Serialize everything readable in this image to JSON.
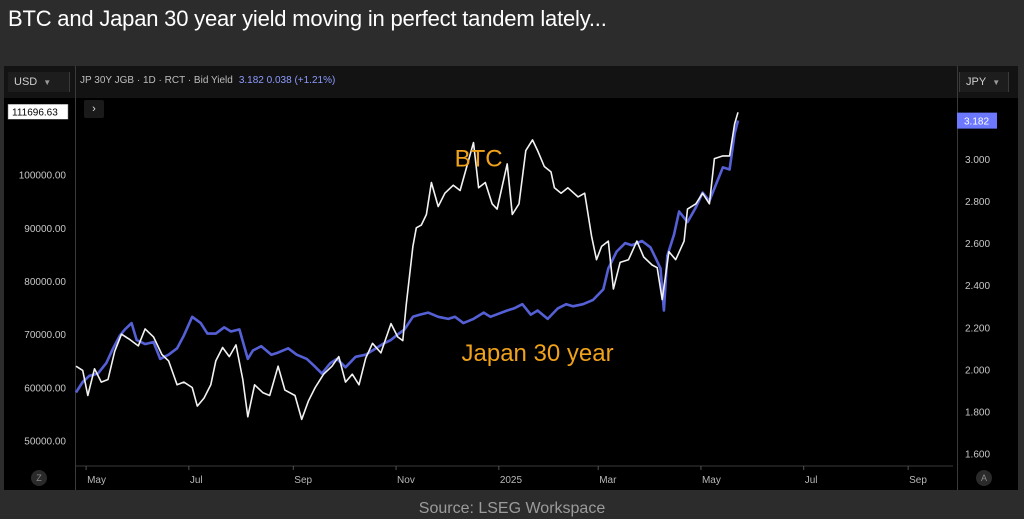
{
  "headline": "BTC and Japan 30 year yield moving in perfect tandem lately...",
  "source": "Source: LSEG Workspace",
  "toolbar": {
    "left_currency": "USD",
    "right_currency": "JPY",
    "instrument": "JP 30Y JGB · 1D · RCT · Bid Yield",
    "instrument_value": "3.182  0.038 (+1.21%)",
    "expand_glyph": "›",
    "zoom_left": "Z",
    "zoom_right": "A"
  },
  "colors": {
    "btc": "#f2f2f2",
    "japan": "#5560d6",
    "annotation": "#f0a21a",
    "last_badge_btc": "#ffffff",
    "last_badge_jgb": "#6b78ff"
  },
  "chart_data": {
    "type": "line",
    "title": "BTC and Japan 30 year yield moving in perfect tandem lately...",
    "x_axis": {
      "ticks": [
        "May",
        "Jul",
        "Sep",
        "Nov",
        "2025",
        "Mar",
        "May",
        "Jul",
        "Sep"
      ],
      "tick_dates": [
        "2024-05-01",
        "2024-07-01",
        "2024-09-01",
        "2024-11-01",
        "2025-01-01",
        "2025-03-01",
        "2025-05-01",
        "2025-07-01",
        "2025-09-01"
      ],
      "range": [
        "2024-04-25",
        "2025-09-30"
      ]
    },
    "left_axis": {
      "currency": "USD",
      "ticks": [
        "50000.00",
        "60000.00",
        "70000.00",
        "80000.00",
        "90000.00",
        "100000.00"
      ],
      "range": [
        46000,
        114000
      ]
    },
    "right_axis": {
      "currency": "JPY",
      "ticks": [
        "1.600",
        "1.800",
        "2.000",
        "2.200",
        "2.400",
        "2.600",
        "2.800",
        "3.000"
      ],
      "range": [
        1.56,
        3.28
      ]
    },
    "last_values": {
      "btc": "111696.63",
      "jgb": "3.182"
    },
    "annotations": [
      {
        "text": "BTC",
        "date": "2024-12-20",
        "value_usd": 101500
      },
      {
        "text": "Japan 30 year",
        "date": "2025-01-24",
        "value_usd": 65000
      }
    ],
    "series": [
      {
        "name": "BTC",
        "axis": "left",
        "points": [
          [
            "2024-04-25",
            64000
          ],
          [
            "2024-04-29",
            63200
          ],
          [
            "2024-05-02",
            58500
          ],
          [
            "2024-05-06",
            63500
          ],
          [
            "2024-05-10",
            61000
          ],
          [
            "2024-05-14",
            61500
          ],
          [
            "2024-05-18",
            66800
          ],
          [
            "2024-05-22",
            70000
          ],
          [
            "2024-05-27",
            69000
          ],
          [
            "2024-06-01",
            67800
          ],
          [
            "2024-06-05",
            71000
          ],
          [
            "2024-06-10",
            69500
          ],
          [
            "2024-06-15",
            66200
          ],
          [
            "2024-06-19",
            65000
          ],
          [
            "2024-06-24",
            60500
          ],
          [
            "2024-06-28",
            61000
          ],
          [
            "2024-07-03",
            60000
          ],
          [
            "2024-07-06",
            56500
          ],
          [
            "2024-07-10",
            58000
          ],
          [
            "2024-07-14",
            60500
          ],
          [
            "2024-07-17",
            65000
          ],
          [
            "2024-07-21",
            67500
          ],
          [
            "2024-07-25",
            65800
          ],
          [
            "2024-07-29",
            68000
          ],
          [
            "2024-08-02",
            61500
          ],
          [
            "2024-08-05",
            54500
          ],
          [
            "2024-08-09",
            60500
          ],
          [
            "2024-08-14",
            59000
          ],
          [
            "2024-08-18",
            58500
          ],
          [
            "2024-08-23",
            64000
          ],
          [
            "2024-08-27",
            59500
          ],
          [
            "2024-09-02",
            58500
          ],
          [
            "2024-09-06",
            54000
          ],
          [
            "2024-09-10",
            57500
          ],
          [
            "2024-09-14",
            60000
          ],
          [
            "2024-09-19",
            62500
          ],
          [
            "2024-09-24",
            64000
          ],
          [
            "2024-09-28",
            65800
          ],
          [
            "2024-10-02",
            61000
          ],
          [
            "2024-10-06",
            62500
          ],
          [
            "2024-10-10",
            60500
          ],
          [
            "2024-10-14",
            65500
          ],
          [
            "2024-10-18",
            68300
          ],
          [
            "2024-10-23",
            66500
          ],
          [
            "2024-10-29",
            72000
          ],
          [
            "2024-11-02",
            69500
          ],
          [
            "2024-11-05",
            68800
          ],
          [
            "2024-11-07",
            75500
          ],
          [
            "2024-11-11",
            86500
          ],
          [
            "2024-11-13",
            90000
          ],
          [
            "2024-11-16",
            90500
          ],
          [
            "2024-11-19",
            92500
          ],
          [
            "2024-11-22",
            98500
          ],
          [
            "2024-11-26",
            94000
          ],
          [
            "2024-11-30",
            96500
          ],
          [
            "2024-12-05",
            98000
          ],
          [
            "2024-12-09",
            97000
          ],
          [
            "2024-12-13",
            101500
          ],
          [
            "2024-12-17",
            106000
          ],
          [
            "2024-12-20",
            97500
          ],
          [
            "2024-12-24",
            98500
          ],
          [
            "2024-12-28",
            94500
          ],
          [
            "2024-12-31",
            93500
          ],
          [
            "2025-01-06",
            102000
          ],
          [
            "2025-01-09",
            92500
          ],
          [
            "2025-01-13",
            94500
          ],
          [
            "2025-01-17",
            104500
          ],
          [
            "2025-01-21",
            106500
          ],
          [
            "2025-01-24",
            104500
          ],
          [
            "2025-01-28",
            101500
          ],
          [
            "2025-02-01",
            100500
          ],
          [
            "2025-02-03",
            97500
          ],
          [
            "2025-02-07",
            96500
          ],
          [
            "2025-02-11",
            97500
          ],
          [
            "2025-02-17",
            95800
          ],
          [
            "2025-02-21",
            96500
          ],
          [
            "2025-02-25",
            88500
          ],
          [
            "2025-02-28",
            84000
          ],
          [
            "2025-03-03",
            86500
          ],
          [
            "2025-03-07",
            87500
          ],
          [
            "2025-03-10",
            78500
          ],
          [
            "2025-03-14",
            83500
          ],
          [
            "2025-03-19",
            84000
          ],
          [
            "2025-03-24",
            87500
          ],
          [
            "2025-03-28",
            84500
          ],
          [
            "2025-04-02",
            83000
          ],
          [
            "2025-04-05",
            82500
          ],
          [
            "2025-04-08",
            76500
          ],
          [
            "2025-04-12",
            85500
          ],
          [
            "2025-04-16",
            84000
          ],
          [
            "2025-04-21",
            87500
          ],
          [
            "2025-04-23",
            93500
          ],
          [
            "2025-04-28",
            94500
          ],
          [
            "2025-05-02",
            96500
          ],
          [
            "2025-05-06",
            94500
          ],
          [
            "2025-05-09",
            103000
          ],
          [
            "2025-05-14",
            103500
          ],
          [
            "2025-05-18",
            103500
          ],
          [
            "2025-05-21",
            109500
          ],
          [
            "2025-05-23",
            111696
          ]
        ]
      },
      {
        "name": "Japan 30 year",
        "axis": "right",
        "points": [
          [
            "2024-04-25",
            1.89
          ],
          [
            "2024-04-29",
            1.94
          ],
          [
            "2024-05-03",
            1.97
          ],
          [
            "2024-05-08",
            1.98
          ],
          [
            "2024-05-13",
            2.03
          ],
          [
            "2024-05-17",
            2.1
          ],
          [
            "2024-05-21",
            2.16
          ],
          [
            "2024-05-24",
            2.19
          ],
          [
            "2024-05-28",
            2.22
          ],
          [
            "2024-05-31",
            2.14
          ],
          [
            "2024-06-05",
            2.12
          ],
          [
            "2024-06-10",
            2.13
          ],
          [
            "2024-06-14",
            2.05
          ],
          [
            "2024-06-19",
            2.07
          ],
          [
            "2024-06-24",
            2.1
          ],
          [
            "2024-06-28",
            2.16
          ],
          [
            "2024-07-03",
            2.25
          ],
          [
            "2024-07-08",
            2.22
          ],
          [
            "2024-07-12",
            2.17
          ],
          [
            "2024-07-17",
            2.17
          ],
          [
            "2024-07-22",
            2.2
          ],
          [
            "2024-07-26",
            2.18
          ],
          [
            "2024-07-31",
            2.19
          ],
          [
            "2024-08-05",
            2.05
          ],
          [
            "2024-08-08",
            2.09
          ],
          [
            "2024-08-13",
            2.11
          ],
          [
            "2024-08-19",
            2.07
          ],
          [
            "2024-08-23",
            2.08
          ],
          [
            "2024-08-29",
            2.1
          ],
          [
            "2024-09-03",
            2.07
          ],
          [
            "2024-09-09",
            2.05
          ],
          [
            "2024-09-13",
            2.02
          ],
          [
            "2024-09-18",
            1.98
          ],
          [
            "2024-09-23",
            2.03
          ],
          [
            "2024-09-27",
            2.05
          ],
          [
            "2024-10-02",
            2.01
          ],
          [
            "2024-10-08",
            2.06
          ],
          [
            "2024-10-14",
            2.07
          ],
          [
            "2024-10-18",
            2.09
          ],
          [
            "2024-10-24",
            2.12
          ],
          [
            "2024-10-29",
            2.14
          ],
          [
            "2024-11-01",
            2.16
          ],
          [
            "2024-11-06",
            2.19
          ],
          [
            "2024-11-11",
            2.25
          ],
          [
            "2024-11-15",
            2.26
          ],
          [
            "2024-11-20",
            2.27
          ],
          [
            "2024-11-26",
            2.25
          ],
          [
            "2024-12-02",
            2.24
          ],
          [
            "2024-12-06",
            2.25
          ],
          [
            "2024-12-11",
            2.22
          ],
          [
            "2024-12-17",
            2.24
          ],
          [
            "2024-12-23",
            2.27
          ],
          [
            "2024-12-27",
            2.25
          ],
          [
            "2025-01-06",
            2.28
          ],
          [
            "2025-01-10",
            2.29
          ],
          [
            "2025-01-15",
            2.31
          ],
          [
            "2025-01-20",
            2.26
          ],
          [
            "2025-01-24",
            2.28
          ],
          [
            "2025-01-30",
            2.24
          ],
          [
            "2025-02-05",
            2.29
          ],
          [
            "2025-02-10",
            2.31
          ],
          [
            "2025-02-14",
            2.3
          ],
          [
            "2025-02-20",
            2.31
          ],
          [
            "2025-02-26",
            2.33
          ],
          [
            "2025-03-04",
            2.38
          ],
          [
            "2025-03-07",
            2.48
          ],
          [
            "2025-03-12",
            2.56
          ],
          [
            "2025-03-17",
            2.6
          ],
          [
            "2025-03-21",
            2.59
          ],
          [
            "2025-03-27",
            2.61
          ],
          [
            "2025-04-01",
            2.58
          ],
          [
            "2025-04-04",
            2.53
          ],
          [
            "2025-04-07",
            2.48
          ],
          [
            "2025-04-09",
            2.28
          ],
          [
            "2025-04-11",
            2.54
          ],
          [
            "2025-04-15",
            2.64
          ],
          [
            "2025-04-18",
            2.75
          ],
          [
            "2025-04-23",
            2.7
          ],
          [
            "2025-04-28",
            2.77
          ],
          [
            "2025-05-02",
            2.84
          ],
          [
            "2025-05-06",
            2.8
          ],
          [
            "2025-05-09",
            2.86
          ],
          [
            "2025-05-14",
            2.96
          ],
          [
            "2025-05-18",
            2.95
          ],
          [
            "2025-05-21",
            3.12
          ],
          [
            "2025-05-23",
            3.182
          ]
        ]
      }
    ]
  }
}
